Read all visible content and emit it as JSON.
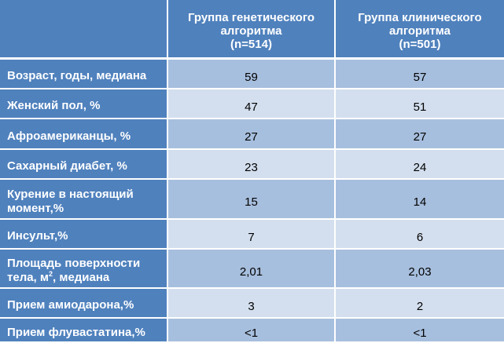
{
  "table": {
    "columns": [
      "",
      "Группа генетического\nалгоритма\n(n=514)",
      "Группа клинического\nалгоритма\n(n=501)"
    ],
    "rows": [
      {
        "label": "Возраст, годы, медиана",
        "genetic": "59",
        "clinical": "57"
      },
      {
        "label": "Женский пол, %",
        "genetic": "47",
        "clinical": "51"
      },
      {
        "label": "Афроамериканцы, %",
        "genetic": "27",
        "clinical": "27"
      },
      {
        "label": "Сахарный диабет, %",
        "genetic": "23",
        "clinical": "24"
      },
      {
        "label": "Курение в настоящий момент,%",
        "genetic": "15",
        "clinical": "14"
      },
      {
        "label": "Инсульт,%",
        "genetic": "7",
        "clinical": "6"
      },
      {
        "label_part1": "Площадь поверхности тела, м",
        "label_sup": "2",
        "label_part2": ", медиана",
        "genetic": "2,01",
        "clinical": "2,03"
      },
      {
        "label": "Прием амиодарона,%",
        "genetic": "3",
        "clinical": "2"
      },
      {
        "label": "Прием флувастатина,%",
        "genetic": "<1",
        "clinical": "<1"
      }
    ]
  },
  "colors": {
    "header_bg": "#4f81bd",
    "row_dark": "#a7bfde",
    "row_light": "#d3dfee",
    "grid_line": "#ffffff"
  }
}
